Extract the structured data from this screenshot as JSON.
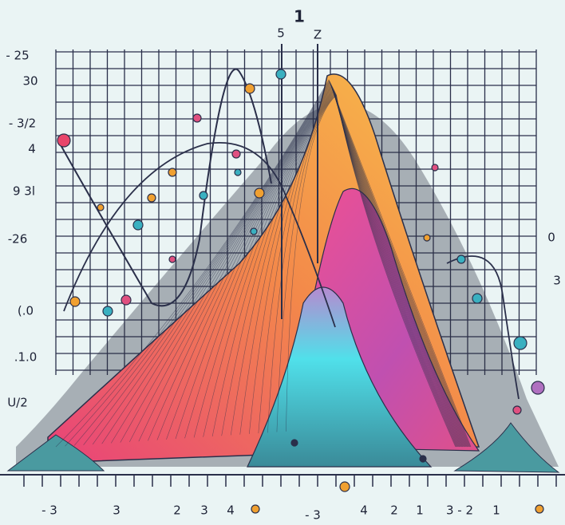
{
  "title": "1",
  "top_labels": [
    "5",
    "Z"
  ],
  "left_labels": [
    "- 25",
    "30",
    "- 3/2",
    "4",
    "9 3l",
    "-26",
    "(.0",
    ".1.0",
    "U/2"
  ],
  "right_labels": [
    "0",
    "3"
  ],
  "bottom_labels": [
    "- 3",
    "3",
    "2",
    "3",
    "4",
    "- 3",
    "4",
    "2",
    "1",
    "3 - 2",
    "1"
  ]
}
